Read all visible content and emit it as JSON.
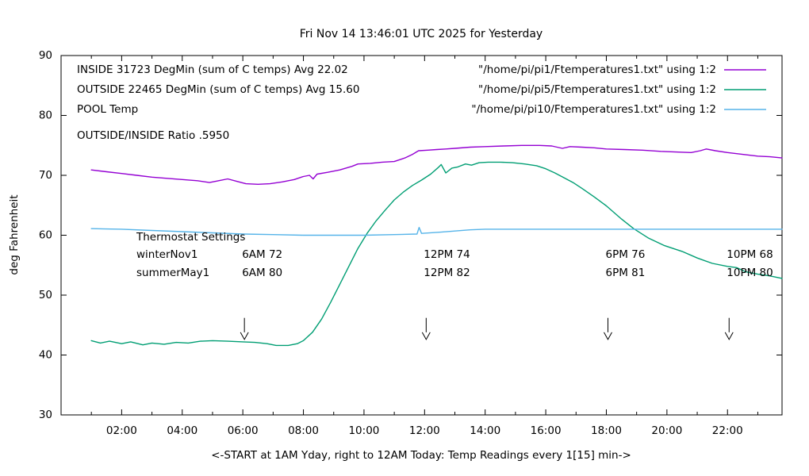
{
  "title": "Fri Nov 14 13:46:01 UTC 2025 for Yesterday",
  "y_axis": {
    "label": "deg Fahrenheit",
    "ticks": [
      30,
      40,
      50,
      60,
      70,
      80,
      90
    ]
  },
  "x_axis": {
    "label": "<-START at 1AM Yday, right to 12AM Today:  Temp Readings every 1[15] min->",
    "ticks": [
      {
        "h": 2,
        "label": "02:00"
      },
      {
        "h": 4,
        "label": "04:00"
      },
      {
        "h": 6,
        "label": "06:00"
      },
      {
        "h": 8,
        "label": "08:00"
      },
      {
        "h": 10,
        "label": "10:00"
      },
      {
        "h": 12,
        "label": "12:00"
      },
      {
        "h": 14,
        "label": "14:00"
      },
      {
        "h": 16,
        "label": "16:00"
      },
      {
        "h": 18,
        "label": "18:00"
      },
      {
        "h": 20,
        "label": "20:00"
      },
      {
        "h": 22,
        "label": "22:00"
      }
    ],
    "minor_hours": [
      1,
      3,
      5,
      7,
      9,
      11,
      13,
      15,
      17,
      19,
      21,
      23
    ]
  },
  "legend": {
    "rows": [
      {
        "label": "INSIDE 31723 DegMin (sum of C temps) Avg 22.02",
        "file": "\"/home/pi/pi1/Ftemperatures1.txt\" using 1:2",
        "color": "#9400d3"
      },
      {
        "label": "OUTSIDE 22465 DegMin (sum of C temps) Avg 15.60",
        "file": "\"/home/pi/pi5/Ftemperatures1.txt\" using 1:2",
        "color": "#009e73"
      },
      {
        "label": "POOL Temp",
        "file": "\"/home/pi/pi10/Ftemperatures1.txt\" using 1:2",
        "color": "#56b4e9"
      }
    ]
  },
  "ratio_label": "OUTSIDE/INSIDE Ratio .5950",
  "thermostat": {
    "heading": "Thermostat Settings",
    "rows": [
      {
        "name": "winterNov1",
        "entries": [
          "6AM 72",
          "12PM 74",
          "6PM 76",
          "10PM 68"
        ]
      },
      {
        "name": "summerMay1",
        "entries": [
          "6AM 80",
          "12PM 82",
          "6PM 81",
          "10PM 80"
        ]
      }
    ]
  },
  "chart_data": {
    "type": "line",
    "title": "Fri Nov 14 13:46:01 UTC 2025 for Yesterday",
    "xlabel": "<-START at 1AM Yday, right to 12AM Today:  Temp Readings every 1[15] min->",
    "ylabel": "deg Fahrenheit",
    "x_range": [
      0,
      23.8
    ],
    "y_range": [
      30,
      90
    ],
    "grid": false,
    "legend_position": "top-inside",
    "markers": {
      "hours": [
        6,
        12,
        18,
        22
      ],
      "arrow_top_f": 46.2,
      "arrow_tip_f": 42.6
    },
    "series": [
      {
        "name": "INSIDE",
        "color": "#9400d3",
        "points": [
          [
            1.0,
            70.9
          ],
          [
            1.5,
            70.6
          ],
          [
            2.0,
            70.3
          ],
          [
            2.5,
            70.0
          ],
          [
            3.0,
            69.7
          ],
          [
            3.5,
            69.5
          ],
          [
            4.0,
            69.3
          ],
          [
            4.5,
            69.1
          ],
          [
            4.9,
            68.8
          ],
          [
            5.2,
            69.1
          ],
          [
            5.5,
            69.4
          ],
          [
            5.8,
            69.0
          ],
          [
            6.1,
            68.6
          ],
          [
            6.5,
            68.5
          ],
          [
            6.9,
            68.6
          ],
          [
            7.3,
            68.9
          ],
          [
            7.7,
            69.3
          ],
          [
            8.0,
            69.8
          ],
          [
            8.2,
            70.0
          ],
          [
            8.32,
            69.4
          ],
          [
            8.45,
            70.2
          ],
          [
            8.8,
            70.5
          ],
          [
            9.2,
            70.9
          ],
          [
            9.6,
            71.5
          ],
          [
            9.8,
            71.9
          ],
          [
            10.2,
            72.0
          ],
          [
            10.6,
            72.2
          ],
          [
            11.0,
            72.3
          ],
          [
            11.35,
            72.9
          ],
          [
            11.6,
            73.5
          ],
          [
            11.8,
            74.1
          ],
          [
            12.1,
            74.2
          ],
          [
            12.4,
            74.3
          ],
          [
            12.7,
            74.4
          ],
          [
            13.0,
            74.5
          ],
          [
            13.5,
            74.7
          ],
          [
            14.0,
            74.8
          ],
          [
            14.6,
            74.9
          ],
          [
            15.2,
            75.0
          ],
          [
            15.8,
            75.0
          ],
          [
            16.2,
            74.9
          ],
          [
            16.55,
            74.5
          ],
          [
            16.8,
            74.8
          ],
          [
            17.2,
            74.7
          ],
          [
            17.6,
            74.6
          ],
          [
            18.0,
            74.4
          ],
          [
            18.6,
            74.3
          ],
          [
            19.2,
            74.2
          ],
          [
            19.8,
            74.0
          ],
          [
            20.3,
            73.9
          ],
          [
            20.8,
            73.8
          ],
          [
            21.1,
            74.1
          ],
          [
            21.3,
            74.4
          ],
          [
            21.6,
            74.1
          ],
          [
            22.0,
            73.8
          ],
          [
            22.5,
            73.5
          ],
          [
            23.0,
            73.2
          ],
          [
            23.4,
            73.1
          ],
          [
            23.8,
            72.9
          ]
        ]
      },
      {
        "name": "OUTSIDE",
        "color": "#009e73",
        "points": [
          [
            1.0,
            42.4
          ],
          [
            1.3,
            42.0
          ],
          [
            1.6,
            42.3
          ],
          [
            2.0,
            41.9
          ],
          [
            2.3,
            42.2
          ],
          [
            2.7,
            41.7
          ],
          [
            3.0,
            42.0
          ],
          [
            3.4,
            41.8
          ],
          [
            3.8,
            42.1
          ],
          [
            4.2,
            42.0
          ],
          [
            4.6,
            42.3
          ],
          [
            5.0,
            42.4
          ],
          [
            5.5,
            42.3
          ],
          [
            6.0,
            42.2
          ],
          [
            6.4,
            42.1
          ],
          [
            6.8,
            41.9
          ],
          [
            7.1,
            41.6
          ],
          [
            7.5,
            41.6
          ],
          [
            7.8,
            41.9
          ],
          [
            8.0,
            42.4
          ],
          [
            8.3,
            43.8
          ],
          [
            8.6,
            46.0
          ],
          [
            8.9,
            48.8
          ],
          [
            9.2,
            51.8
          ],
          [
            9.5,
            54.8
          ],
          [
            9.8,
            57.8
          ],
          [
            10.1,
            60.3
          ],
          [
            10.4,
            62.4
          ],
          [
            10.7,
            64.2
          ],
          [
            11.0,
            65.9
          ],
          [
            11.3,
            67.2
          ],
          [
            11.6,
            68.3
          ],
          [
            11.9,
            69.2
          ],
          [
            12.2,
            70.2
          ],
          [
            12.45,
            71.3
          ],
          [
            12.55,
            71.8
          ],
          [
            12.7,
            70.4
          ],
          [
            12.9,
            71.2
          ],
          [
            13.1,
            71.4
          ],
          [
            13.35,
            71.9
          ],
          [
            13.55,
            71.7
          ],
          [
            13.8,
            72.1
          ],
          [
            14.1,
            72.2
          ],
          [
            14.5,
            72.2
          ],
          [
            14.9,
            72.1
          ],
          [
            15.3,
            71.9
          ],
          [
            15.7,
            71.6
          ],
          [
            16.0,
            71.1
          ],
          [
            16.3,
            70.4
          ],
          [
            16.6,
            69.6
          ],
          [
            16.9,
            68.8
          ],
          [
            17.2,
            67.8
          ],
          [
            17.6,
            66.4
          ],
          [
            18.0,
            64.9
          ],
          [
            18.5,
            62.7
          ],
          [
            18.9,
            61.1
          ],
          [
            19.4,
            59.5
          ],
          [
            19.9,
            58.3
          ],
          [
            20.5,
            57.3
          ],
          [
            21.0,
            56.2
          ],
          [
            21.5,
            55.3
          ],
          [
            22.0,
            54.8
          ],
          [
            22.3,
            54.6
          ],
          [
            22.6,
            53.9
          ],
          [
            23.0,
            53.5
          ],
          [
            23.4,
            53.2
          ],
          [
            23.8,
            52.8
          ]
        ]
      },
      {
        "name": "POOL",
        "color": "#56b4e9",
        "points": [
          [
            1.0,
            61.1
          ],
          [
            2.0,
            61.0
          ],
          [
            3.0,
            60.8
          ],
          [
            4.0,
            60.6
          ],
          [
            5.0,
            60.4
          ],
          [
            6.0,
            60.2
          ],
          [
            7.0,
            60.1
          ],
          [
            8.0,
            60.0
          ],
          [
            9.0,
            60.0
          ],
          [
            10.0,
            60.0
          ],
          [
            11.0,
            60.1
          ],
          [
            11.75,
            60.2
          ],
          [
            11.82,
            61.3
          ],
          [
            11.9,
            60.3
          ],
          [
            12.5,
            60.5
          ],
          [
            13.0,
            60.7
          ],
          [
            13.5,
            60.9
          ],
          [
            14.0,
            61.0
          ],
          [
            15.5,
            61.0
          ],
          [
            17.0,
            61.0
          ],
          [
            18.5,
            61.0
          ],
          [
            20.0,
            61.0
          ],
          [
            21.5,
            61.0
          ],
          [
            23.8,
            61.0
          ]
        ]
      }
    ]
  }
}
